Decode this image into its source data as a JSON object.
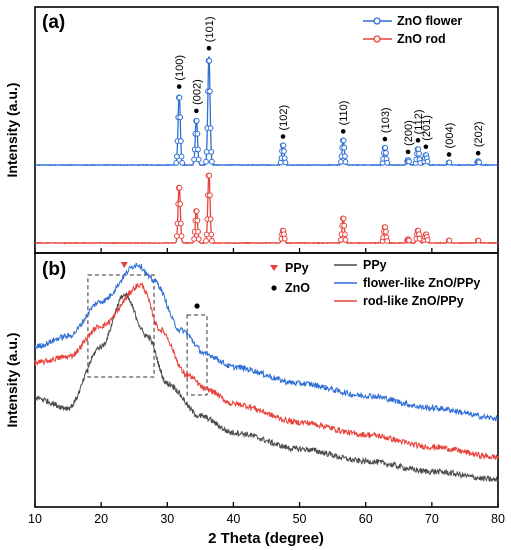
{
  "figure": {
    "xlabel": "2 Theta (degree)",
    "x_ticks": [
      10,
      20,
      30,
      40,
      50,
      60,
      70,
      80
    ],
    "xlim": [
      10,
      80
    ]
  },
  "chart_data": [
    {
      "type": "line",
      "panel_label": "(a)",
      "ylabel": "Intensity (a.u.)",
      "xlim": [
        10,
        80
      ],
      "y_tick_labels": "none",
      "legend_position": "top-right",
      "series": [
        {
          "name": "ZnO flower",
          "color": "#2f6fd6",
          "marker": "open-circle",
          "peaks": [
            {
              "x": 31.8,
              "height": 0.55
            },
            {
              "x": 34.4,
              "height": 0.36
            },
            {
              "x": 36.3,
              "height": 0.85
            },
            {
              "x": 47.5,
              "height": 0.16
            },
            {
              "x": 56.6,
              "height": 0.2
            },
            {
              "x": 62.9,
              "height": 0.14
            },
            {
              "x": 66.4,
              "height": 0.04
            },
            {
              "x": 67.9,
              "height": 0.13
            },
            {
              "x": 69.1,
              "height": 0.08
            },
            {
              "x": 72.6,
              "height": 0.02
            },
            {
              "x": 77.0,
              "height": 0.03
            }
          ]
        },
        {
          "name": "ZnO rod",
          "color": "#e8413a",
          "marker": "open-circle",
          "peaks": [
            {
              "x": 31.8,
              "height": 0.45
            },
            {
              "x": 34.4,
              "height": 0.26
            },
            {
              "x": 36.3,
              "height": 0.55
            },
            {
              "x": 47.5,
              "height": 0.1
            },
            {
              "x": 56.6,
              "height": 0.2
            },
            {
              "x": 62.9,
              "height": 0.13
            },
            {
              "x": 66.4,
              "height": 0.03
            },
            {
              "x": 67.9,
              "height": 0.1
            },
            {
              "x": 69.1,
              "height": 0.07
            },
            {
              "x": 72.6,
              "height": 0.02
            },
            {
              "x": 77.0,
              "height": 0.02
            }
          ]
        }
      ],
      "peak_labels": [
        {
          "x": 31.8,
          "text": "(100)"
        },
        {
          "x": 34.4,
          "text": "(002)"
        },
        {
          "x": 36.3,
          "text": "(101)"
        },
        {
          "x": 47.5,
          "text": "(102)"
        },
        {
          "x": 56.6,
          "text": "(110)"
        },
        {
          "x": 62.9,
          "text": "(103)"
        },
        {
          "x": 66.4,
          "text": "(200)"
        },
        {
          "x": 67.9,
          "text": "(112)"
        },
        {
          "x": 69.1,
          "text": "(201)"
        },
        {
          "x": 72.6,
          "text": "(004)"
        },
        {
          "x": 77.0,
          "text": "(202)"
        }
      ]
    },
    {
      "type": "line",
      "panel_label": "(b)",
      "ylabel": "Intensity (a.u.)",
      "xlim": [
        10,
        80
      ],
      "y_tick_labels": "none",
      "legend_position": "top-right",
      "marker_legend": [
        {
          "symbol": "triangle-down",
          "color": "#e8413a",
          "text": "PPy"
        },
        {
          "symbol": "dot",
          "color": "#000000",
          "text": "ZnO"
        }
      ],
      "series": [
        {
          "name": "PPy",
          "color": "#4a4a4a",
          "broad_peak_center": 23.5,
          "profile": [
            {
              "x": 10,
              "y": 0.45
            },
            {
              "x": 15,
              "y": 0.4
            },
            {
              "x": 20,
              "y": 0.7
            },
            {
              "x": 23.5,
              "y": 0.95
            },
            {
              "x": 27,
              "y": 0.75
            },
            {
              "x": 30,
              "y": 0.52
            },
            {
              "x": 35,
              "y": 0.36
            },
            {
              "x": 40,
              "y": 0.28
            },
            {
              "x": 50,
              "y": 0.2
            },
            {
              "x": 60,
              "y": 0.14
            },
            {
              "x": 70,
              "y": 0.09
            },
            {
              "x": 80,
              "y": 0.05
            }
          ]
        },
        {
          "name": "flower-like ZnO/PPy",
          "color": "#2f6fd6",
          "broad_peak_center": 25.5,
          "profile": [
            {
              "x": 10,
              "y": 0.7
            },
            {
              "x": 15,
              "y": 0.75
            },
            {
              "x": 20,
              "y": 0.92
            },
            {
              "x": 25.5,
              "y": 1.1
            },
            {
              "x": 28,
              "y": 1.02
            },
            {
              "x": 32,
              "y": 0.78
            },
            {
              "x": 36,
              "y": 0.66
            },
            {
              "x": 40,
              "y": 0.6
            },
            {
              "x": 50,
              "y": 0.52
            },
            {
              "x": 60,
              "y": 0.46
            },
            {
              "x": 70,
              "y": 0.4
            },
            {
              "x": 80,
              "y": 0.35
            }
          ]
        },
        {
          "name": "rod-like ZnO/PPy",
          "color": "#e8413a",
          "broad_peak_center": 26,
          "profile": [
            {
              "x": 10,
              "y": 0.62
            },
            {
              "x": 15,
              "y": 0.65
            },
            {
              "x": 20,
              "y": 0.8
            },
            {
              "x": 26,
              "y": 1.0
            },
            {
              "x": 29,
              "y": 0.78
            },
            {
              "x": 33,
              "y": 0.56
            },
            {
              "x": 36,
              "y": 0.49
            },
            {
              "x": 40,
              "y": 0.42
            },
            {
              "x": 50,
              "y": 0.33
            },
            {
              "x": 60,
              "y": 0.27
            },
            {
              "x": 70,
              "y": 0.21
            },
            {
              "x": 80,
              "y": 0.16
            }
          ]
        }
      ],
      "annotations": [
        {
          "kind": "dashed-box",
          "x_range": [
            18,
            28
          ]
        },
        {
          "kind": "dashed-box",
          "x_range": [
            33,
            36
          ]
        },
        {
          "kind": "triangle-down",
          "x": 23.5,
          "color": "#e8413a"
        },
        {
          "kind": "dot",
          "x": 34.5,
          "color": "#000000"
        }
      ]
    }
  ]
}
